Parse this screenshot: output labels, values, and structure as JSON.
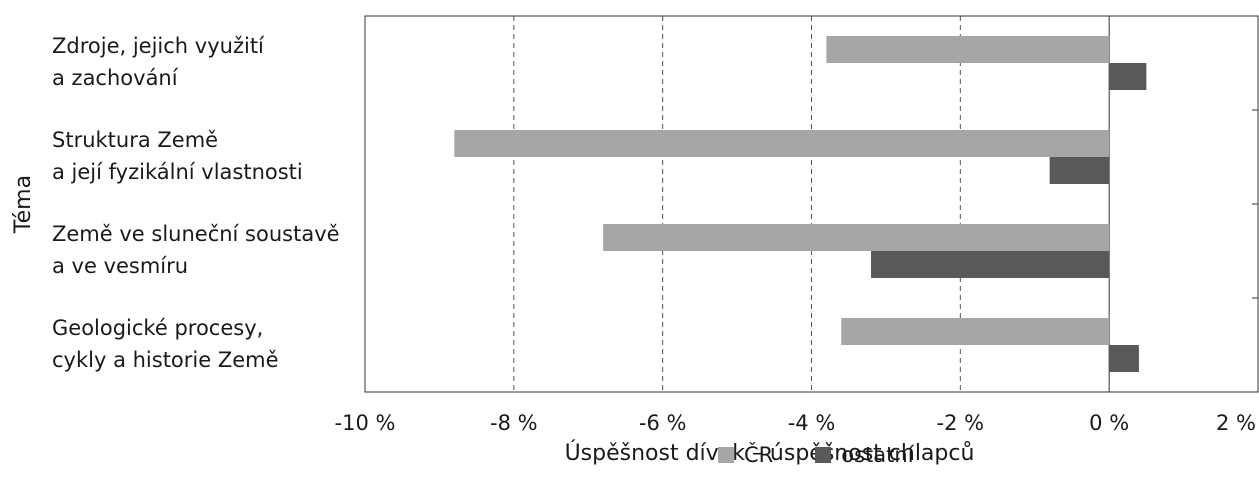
{
  "chart_data": {
    "type": "bar",
    "orientation": "horizontal",
    "categories": [
      "Zdroje, jejich využití\na zachování",
      "Struktura Země\na její fyzikální vlastnosti",
      "Země ve sluneční soustavě\na ve vesmíru",
      "Geologické procesy,\ncykly a historie Země"
    ],
    "series": [
      {
        "name": "ČR",
        "color": "#a6a6a6",
        "values": [
          -3.8,
          -8.8,
          -6.8,
          -3.6
        ]
      },
      {
        "name": "ostatní",
        "color": "#595959",
        "values": [
          0.5,
          -0.8,
          -3.2,
          0.4
        ]
      }
    ],
    "xlabel": "Úspěšnost dívek – úspěšnost chlapců",
    "ylabel": "Téma",
    "xlim": [
      -10,
      2
    ],
    "xticks": [
      -10,
      -8,
      -6,
      -4,
      -2,
      0,
      2
    ],
    "xtick_labels": [
      "-10 %",
      "-8 %",
      "-6 %",
      "-4 %",
      "-2 %",
      "0 %",
      "2 %"
    ],
    "grid": "vertical dashed",
    "legend_position": "bottom"
  }
}
